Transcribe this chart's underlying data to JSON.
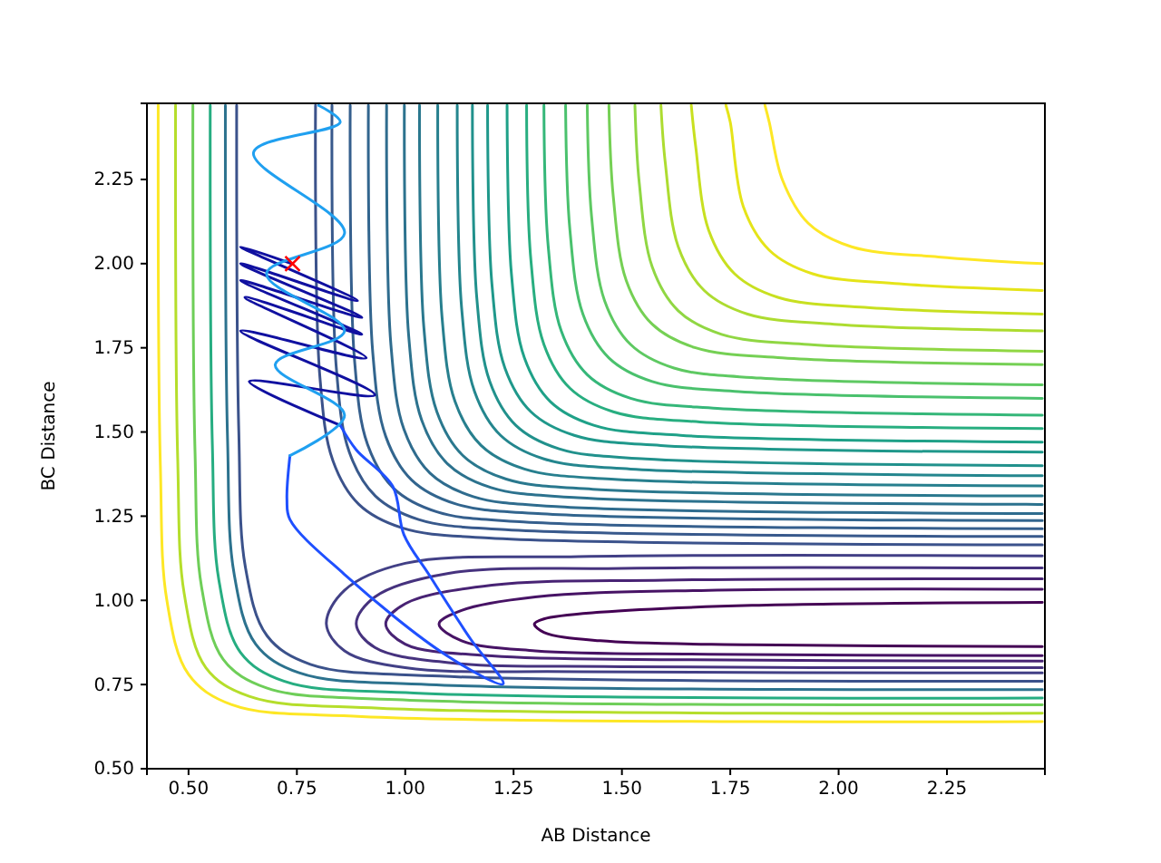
{
  "chart_data": {
    "type": "line",
    "xlabel": "AB Distance",
    "ylabel": "BC Distance",
    "xlim": [
      0.404,
      2.476
    ],
    "ylim": [
      0.5,
      2.476
    ],
    "xticks": [
      {
        "value": 0.5,
        "label": "0.50"
      },
      {
        "value": 0.75,
        "label": "0.75"
      },
      {
        "value": 1.0,
        "label": "1.00"
      },
      {
        "value": 1.25,
        "label": "1.25"
      },
      {
        "value": 1.5,
        "label": "1.50"
      },
      {
        "value": 1.75,
        "label": "1.75"
      },
      {
        "value": 2.0,
        "label": "2.00"
      },
      {
        "value": 2.25,
        "label": "2.25"
      }
    ],
    "yticks": [
      {
        "value": 0.5,
        "label": "0.50"
      },
      {
        "value": 0.75,
        "label": "0.75"
      },
      {
        "value": 1.0,
        "label": "1.00"
      },
      {
        "value": 1.25,
        "label": "1.25"
      },
      {
        "value": 1.5,
        "label": "1.50"
      },
      {
        "value": 1.75,
        "label": "1.75"
      },
      {
        "value": 2.0,
        "label": "2.00"
      },
      {
        "value": 2.25,
        "label": "2.25"
      }
    ],
    "grid": false,
    "series": [
      {
        "color": "#fde725",
        "x": [
          1.83,
          1.84,
          1.87,
          1.93,
          2.03,
          2.23,
          2.47
        ],
        "values": [
          2.47,
          2.42,
          2.25,
          2.12,
          2.05,
          2.02,
          2.0
        ]
      },
      {
        "color": "#e5e419",
        "x": [
          1.74,
          1.75,
          1.78,
          1.84,
          1.94,
          2.14,
          2.47
        ],
        "values": [
          2.47,
          2.42,
          2.17,
          2.04,
          1.97,
          1.94,
          1.92
        ]
      },
      {
        "color": "#c8e020",
        "x": [
          1.66,
          1.67,
          1.7,
          1.76,
          1.86,
          2.06,
          2.47
        ],
        "values": [
          2.47,
          2.35,
          2.1,
          1.97,
          1.9,
          1.87,
          1.85
        ]
      },
      {
        "color": "#addc30",
        "x": [
          1.59,
          1.6,
          1.63,
          1.69,
          1.79,
          1.99,
          2.47
        ],
        "values": [
          2.47,
          2.3,
          2.05,
          1.92,
          1.85,
          1.82,
          1.8
        ]
      },
      {
        "color": "#90d743",
        "x": [
          1.53,
          1.54,
          1.57,
          1.63,
          1.73,
          1.93,
          2.47
        ],
        "values": [
          2.47,
          2.24,
          1.99,
          1.86,
          1.79,
          1.76,
          1.74
        ]
      },
      {
        "color": "#75d054",
        "x": [
          1.47,
          1.48,
          1.51,
          1.57,
          1.67,
          1.87,
          2.47
        ],
        "values": [
          2.47,
          2.2,
          1.95,
          1.82,
          1.75,
          1.72,
          1.7
        ]
      },
      {
        "color": "#5ec962",
        "x": [
          1.42,
          1.43,
          1.46,
          1.52,
          1.62,
          1.82,
          2.47
        ],
        "values": [
          2.47,
          2.14,
          1.89,
          1.76,
          1.69,
          1.66,
          1.64
        ]
      },
      {
        "color": "#4ac16d",
        "x": [
          1.37,
          1.38,
          1.41,
          1.47,
          1.57,
          1.77,
          2.47
        ],
        "values": [
          2.47,
          2.1,
          1.85,
          1.72,
          1.65,
          1.62,
          1.6
        ]
      },
      {
        "color": "#35b779",
        "x": [
          1.32,
          1.33,
          1.36,
          1.42,
          1.52,
          1.72,
          2.47
        ],
        "values": [
          2.47,
          2.05,
          1.8,
          1.67,
          1.6,
          1.57,
          1.55
        ]
      },
      {
        "color": "#28ae80",
        "x": [
          1.28,
          1.29,
          1.32,
          1.38,
          1.48,
          1.68,
          2.47
        ],
        "values": [
          2.47,
          2.01,
          1.76,
          1.63,
          1.56,
          1.53,
          1.51
        ]
      },
      {
        "color": "#1fa188",
        "x": [
          1.235,
          1.245,
          1.275,
          1.335,
          1.435,
          1.635,
          2.47
        ],
        "values": [
          2.47,
          1.97,
          1.72,
          1.59,
          1.52,
          1.49,
          1.47
        ]
      },
      {
        "color": "#1f988b",
        "x": [
          1.19,
          1.2,
          1.23,
          1.29,
          1.39,
          1.59,
          2.47
        ],
        "values": [
          2.47,
          1.94,
          1.69,
          1.56,
          1.49,
          1.46,
          1.44
        ]
      },
      {
        "color": "#21918c",
        "x": [
          1.155,
          1.165,
          1.195,
          1.255,
          1.355,
          1.555,
          2.47
        ],
        "values": [
          2.47,
          1.9,
          1.65,
          1.52,
          1.45,
          1.42,
          1.4
        ]
      },
      {
        "color": "#24868e",
        "x": [
          1.12,
          1.13,
          1.16,
          1.22,
          1.32,
          1.52,
          2.47
        ],
        "values": [
          2.47,
          1.87,
          1.62,
          1.49,
          1.42,
          1.39,
          1.37
        ]
      },
      {
        "color": "#277f8e",
        "x": [
          1.075,
          1.085,
          1.115,
          1.175,
          1.275,
          1.475,
          2.47
        ],
        "values": [
          2.47,
          1.84,
          1.59,
          1.46,
          1.39,
          1.36,
          1.34
        ]
      },
      {
        "color": "#2a788e",
        "x": [
          1.033,
          1.043,
          1.073,
          1.133,
          1.233,
          1.433,
          2.47
        ],
        "values": [
          2.47,
          1.81,
          1.56,
          1.43,
          1.36,
          1.33,
          1.31
        ]
      },
      {
        "color": "#2c728e",
        "x": [
          0.998,
          1.008,
          1.038,
          1.098,
          1.198,
          1.398,
          2.47
        ],
        "values": [
          2.47,
          1.785,
          1.535,
          1.405,
          1.335,
          1.305,
          1.285
        ]
      },
      {
        "color": "#2f6c8e",
        "x": [
          0.957,
          0.967,
          0.997,
          1.057,
          1.157,
          1.357,
          2.47
        ],
        "values": [
          2.47,
          1.758,
          1.508,
          1.378,
          1.308,
          1.278,
          1.258
        ]
      },
      {
        "color": "#32658e",
        "x": [
          0.915,
          0.925,
          0.955,
          1.015,
          1.115,
          1.315,
          2.47
        ],
        "values": [
          2.47,
          1.737,
          1.487,
          1.357,
          1.287,
          1.257,
          1.237
        ]
      },
      {
        "color": "#355f8d",
        "x": [
          0.873,
          0.883,
          0.913,
          0.973,
          1.073,
          1.273,
          2.47
        ],
        "values": [
          2.47,
          1.713,
          1.463,
          1.333,
          1.263,
          1.233,
          1.213
        ]
      },
      {
        "color": "#38598c",
        "x": [
          0.831,
          0.841,
          0.871,
          0.931,
          1.031,
          1.231,
          2.47
        ],
        "values": [
          2.47,
          1.69,
          1.44,
          1.31,
          1.24,
          1.21,
          1.19
        ]
      },
      {
        "color": "#3b528b",
        "x": [
          0.793,
          0.803,
          0.833,
          0.893,
          0.993,
          1.193,
          2.47
        ],
        "values": [
          2.47,
          1.665,
          1.415,
          1.285,
          1.215,
          1.185,
          1.165
        ]
      },
      {
        "color": "#440154",
        "x": [
          2.47,
          1.8,
          1.45,
          1.32,
          1.298,
          1.32,
          1.45,
          1.8,
          2.47
        ],
        "values": [
          0.994,
          0.985,
          0.965,
          0.945,
          0.93,
          0.905,
          0.88,
          0.868,
          0.863
        ]
      },
      {
        "color": "#471365",
        "x": [
          2.47,
          1.7,
          1.3,
          1.13,
          1.078,
          1.13,
          1.3,
          1.7,
          2.47
        ],
        "values": [
          1.033,
          1.03,
          1.01,
          0.97,
          0.93,
          0.88,
          0.85,
          0.84,
          0.836
        ]
      },
      {
        "color": "#482374",
        "x": [
          2.47,
          1.6,
          1.2,
          1.0,
          0.955,
          1.0,
          1.2,
          1.6,
          2.47
        ],
        "values": [
          1.064,
          1.06,
          1.045,
          0.99,
          0.93,
          0.87,
          0.835,
          0.824,
          0.82
        ]
      },
      {
        "color": "#46327e",
        "x": [
          2.47,
          1.5,
          1.1,
          0.93,
          0.887,
          0.93,
          1.1,
          1.5,
          2.47
        ],
        "values": [
          1.096,
          1.095,
          1.08,
          1.01,
          0.93,
          0.86,
          0.815,
          0.803,
          0.8
        ]
      },
      {
        "color": "#424086",
        "x": [
          2.47,
          1.4,
          1.0,
          0.86,
          0.818,
          0.86,
          1.0,
          1.4,
          2.47
        ],
        "values": [
          1.132,
          1.13,
          1.11,
          1.03,
          0.93,
          0.85,
          0.8,
          0.788,
          0.785
        ]
      },
      {
        "color": "#fde725",
        "x": [
          0.43,
          0.435,
          0.45,
          0.5,
          0.6,
          0.9,
          2.47
        ],
        "values": [
          2.47,
          1.4,
          1.0,
          0.78,
          0.69,
          0.655,
          0.64
        ]
      },
      {
        "color": "#b5de2b",
        "x": [
          0.47,
          0.475,
          0.49,
          0.54,
          0.64,
          0.94,
          2.47
        ],
        "values": [
          2.47,
          1.42,
          1.02,
          0.8,
          0.715,
          0.68,
          0.665
        ]
      },
      {
        "color": "#6ece58",
        "x": [
          0.51,
          0.515,
          0.53,
          0.58,
          0.68,
          0.98,
          2.47
        ],
        "values": [
          2.47,
          1.44,
          1.04,
          0.825,
          0.74,
          0.705,
          0.69
        ]
      },
      {
        "color": "#26ad81",
        "x": [
          0.55,
          0.555,
          0.57,
          0.62,
          0.72,
          1.02,
          2.47
        ],
        "values": [
          2.47,
          1.46,
          1.06,
          0.845,
          0.76,
          0.725,
          0.71
        ]
      },
      {
        "color": "#2c728e",
        "x": [
          0.585,
          0.59,
          0.605,
          0.655,
          0.755,
          1.055,
          2.47
        ],
        "values": [
          2.47,
          1.48,
          1.08,
          0.87,
          0.785,
          0.75,
          0.735
        ]
      },
      {
        "color": "#3b528b",
        "x": [
          0.611,
          0.616,
          0.631,
          0.681,
          0.781,
          1.08,
          2.47
        ],
        "values": [
          2.47,
          1.5,
          1.1,
          0.895,
          0.81,
          0.775,
          0.76
        ]
      },
      {
        "color": "#1010a0",
        "x": [
          0.738,
          0.62,
          0.89,
          0.62,
          0.9,
          0.62,
          0.9,
          0.63,
          0.91,
          0.62,
          0.93,
          0.64,
          0.85
        ],
        "values": [
          2.0,
          2.05,
          1.89,
          2.0,
          1.84,
          1.95,
          1.79,
          1.9,
          1.72,
          1.8,
          1.61,
          1.65,
          1.52
        ]
      },
      {
        "color": "#1f50ff",
        "x": [
          0.85,
          0.887,
          0.971,
          0.997,
          1.054,
          1.152,
          1.226,
          1.096,
          0.859,
          0.734,
          0.727,
          0.734
        ],
        "values": [
          1.52,
          1.447,
          1.339,
          1.195,
          1.078,
          0.883,
          0.752,
          0.836,
          1.078,
          1.24,
          1.3,
          1.43
        ]
      },
      {
        "color": "#20a0f0",
        "x": [
          0.734,
          0.86,
          0.7,
          0.86,
          0.68,
          0.86,
          0.65,
          0.85,
          0.8
        ],
        "values": [
          1.43,
          1.55,
          1.7,
          1.8,
          1.97,
          2.09,
          2.33,
          2.42,
          2.47
        ]
      },
      {
        "type": "scatter",
        "marker": "cross",
        "color": "#ff0000",
        "x": [
          0.74
        ],
        "values": [
          2.0
        ]
      }
    ]
  }
}
